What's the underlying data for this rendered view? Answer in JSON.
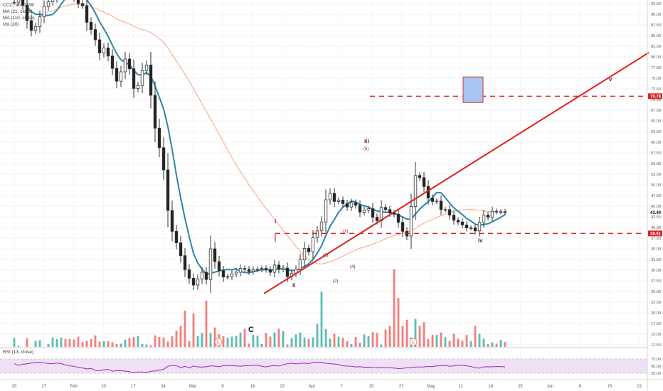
{
  "legend": {
    "symbol_line": "CCC, 4h, GPW",
    "ma_fast": "MA (21, close)",
    "ma_slow": "MA (110, close)",
    "volume": "Vol (20)"
  },
  "rsi_legend": "RSI (13, close)",
  "colors": {
    "up": "#26a69a",
    "down": "#ef5350",
    "candle": "#333333",
    "ma_fast": "#2e86a8",
    "ma_slow": "#f4a582",
    "trend": "#e02020",
    "rsi": "#9c27b0",
    "rsi_band": "#efe0f5",
    "target_box": "#a8c4f0",
    "target_box_border": "#d33030"
  },
  "chart_data": {
    "type": "candlestick",
    "price_axis": {
      "ticks": [
        "92.50",
        "90.00",
        "87.50",
        "85.00",
        "82.50",
        "80.00",
        "77.50",
        "75.00",
        "72.50",
        "70.00",
        "67.50",
        "65.00",
        "62.50",
        "60.00",
        "57.50",
        "55.00",
        "52.50",
        "50.00",
        "47.50",
        "45.00",
        "42.50",
        "40.00",
        "37.50",
        "35.00",
        "32.50",
        "30.00",
        "27.50",
        "25.00",
        "22.50",
        "20.00",
        "17.50",
        "15.00",
        "12.50"
      ],
      "range": [
        11,
        93.5
      ]
    },
    "x_axis": {
      "labels": [
        "20",
        "27",
        "Feb",
        "10",
        "17",
        "24",
        "Mar",
        "9",
        "16",
        "23",
        "Apr",
        "7",
        "20",
        "27",
        "May",
        "11",
        "18",
        "25",
        "Jun",
        "8",
        "15",
        "22"
      ]
    },
    "markers": {
      "last_price": "43.49",
      "target_level": "70.78",
      "support_level": "38.61"
    },
    "levels": [
      70.78,
      38.61
    ],
    "trendline": {
      "from_price": 24.5,
      "to_price": 81.0
    },
    "wave_labels": {
      "C": "C",
      "i": "i",
      "ii": "ii",
      "iii": "iii",
      "iv": "iv",
      "v": "v",
      "s1": "(1)",
      "s2": "(2)",
      "s3": "(3)",
      "s4": "(4)",
      "s5": "(5)"
    },
    "earnings_badge": "E",
    "rsi_axis": {
      "ticks": [
        "75.00",
        "50.00",
        "25.00"
      ],
      "range": [
        0,
        100
      ]
    },
    "prices": [
      92.8,
      93.4,
      92.1,
      88.5,
      86.2,
      87.1,
      89.4,
      91.8,
      92.9,
      93.8,
      95.2,
      96.4,
      96.1,
      95.0,
      93.9,
      92.5,
      92.0,
      88.1,
      86.4,
      84.0,
      80.9,
      82.1,
      80.2,
      77.3,
      74.3,
      76.5,
      79.5,
      77.2,
      72.6,
      73.3,
      76.8,
      78.1,
      71.0,
      63.3,
      58.7,
      53.5,
      44.0,
      39.1,
      36.4,
      33.4,
      30.1,
      28.1,
      26.5,
      27.9,
      29.5,
      27.8,
      35.0,
      32.0,
      29.9,
      28.4,
      28.5,
      29.1,
      29.5,
      30.4,
      30.2,
      29.7,
      30.1,
      30.2,
      30.4,
      30.1,
      29.5,
      31.2,
      30.2,
      30.5,
      28.5,
      29.3,
      30.2,
      32.4,
      35.1,
      34.3,
      37.6,
      39.2,
      41.3,
      46.5,
      48.0,
      46.1,
      46.4,
      45.6,
      44.8,
      45.8,
      45.2,
      43.6,
      44.1,
      44.4,
      42.4,
      41.6,
      44.7,
      44.2,
      43.4,
      43.1,
      41.2,
      39.1,
      38.0,
      44.9,
      52.2,
      51.7,
      49.6,
      46.9,
      46.1,
      46.2,
      44.2,
      44.2,
      42.9,
      41.7,
      41.3,
      40.6,
      39.9,
      39.9,
      39.2,
      41.2,
      42.9,
      42.4,
      43.8,
      43.7,
      43.7,
      43.5
    ],
    "volumes": [
      2.2,
      0.3,
      0.0,
      2.1,
      0.0,
      1.5,
      1.6,
      0.0,
      0.7,
      2.3,
      1.9,
      2.3,
      1.9,
      1.9,
      1.8,
      2.5,
      1.2,
      1.5,
      1.9,
      2.8,
      1.3,
      1.4,
      1.4,
      1.1,
      0.7,
      0.8,
      1.8,
      2.2,
      2.4,
      2.6,
      0.7,
      0.6,
      0.4,
      2.8,
      2.4,
      2.3,
      1.3,
      2.6,
      3.9,
      5.1,
      8.8,
      1.4,
      8.1,
      2.6,
      3.4,
      11.2,
      3.4,
      4.7,
      3.1,
      2.6,
      2.2,
      2.5,
      2.7,
      3.5,
      4.4,
      0.8,
      2.9,
      2.7,
      0.7,
      3.4,
      2.5,
      3.5,
      4.4,
      3.8,
      0.6,
      2.1,
      3.0,
      3.5,
      2.3,
      2.0,
      2.3,
      5.6,
      13.4,
      4.3,
      2.0,
      3.2,
      2.5,
      2.2,
      1.4,
      0.7,
      2.4,
      1.0,
      3.0,
      2.6,
      3.6,
      3.4,
      0.6,
      4.2,
      5.1,
      18.9,
      11.9,
      5.1,
      6.6,
      2.3,
      6.8,
      5.1,
      6.0,
      1.9,
      2.9,
      2.9,
      3.5,
      2.4,
      1.4,
      3.2,
      2.0,
      1.5,
      2.9,
      1.4,
      5.1,
      3.2,
      2.0,
      0.7,
      1.1,
      0.8,
      1.7,
      1.2
    ],
    "rsi": [
      58.6,
      52.5,
      56.6,
      58.0,
      60.6,
      62.9,
      63.1,
      61.4,
      59.2,
      58.4,
      60.8,
      58.7,
      54.2,
      51.0,
      49.2,
      45.8,
      43.5,
      40.4,
      41.8,
      35.1,
      33.4,
      37.5,
      38.2,
      32.1,
      33.9,
      34.0,
      32.6,
      30.4,
      27.0,
      29.6,
      29.1,
      27.5,
      31.9,
      32.7,
      36.0,
      38.8,
      49.2,
      52.9,
      51.4,
      44.8,
      49.2,
      43.8,
      50.2,
      47.3,
      46.7,
      47.8,
      51.0,
      49.8,
      47.8,
      51.6,
      52.1,
      51.4,
      50.9,
      49.4,
      51.2,
      51.5,
      52.7,
      53.4,
      49.5,
      47.2,
      50.3,
      51.9,
      50.2,
      54.6,
      58.6,
      60.3,
      57.9,
      60.1,
      60.4,
      58.7,
      62.8,
      64.1,
      63.0,
      60.1,
      58.4,
      57.1,
      55.2,
      51.0,
      49.9,
      49.6,
      47.2,
      48.1,
      45.8,
      46.4,
      45.4,
      45.0,
      45.4,
      43.9,
      44.6,
      43.0,
      41.1,
      42.2,
      44.2,
      45.1,
      46.8,
      47.0,
      47.1,
      48.8,
      48.0,
      50.8,
      51.0,
      52.9,
      49.4,
      50.7,
      53.0,
      52.8,
      50.8,
      48.6,
      44.7,
      42.8,
      47.6,
      47.9,
      47.5,
      48.8,
      48.2,
      47.5
    ]
  }
}
